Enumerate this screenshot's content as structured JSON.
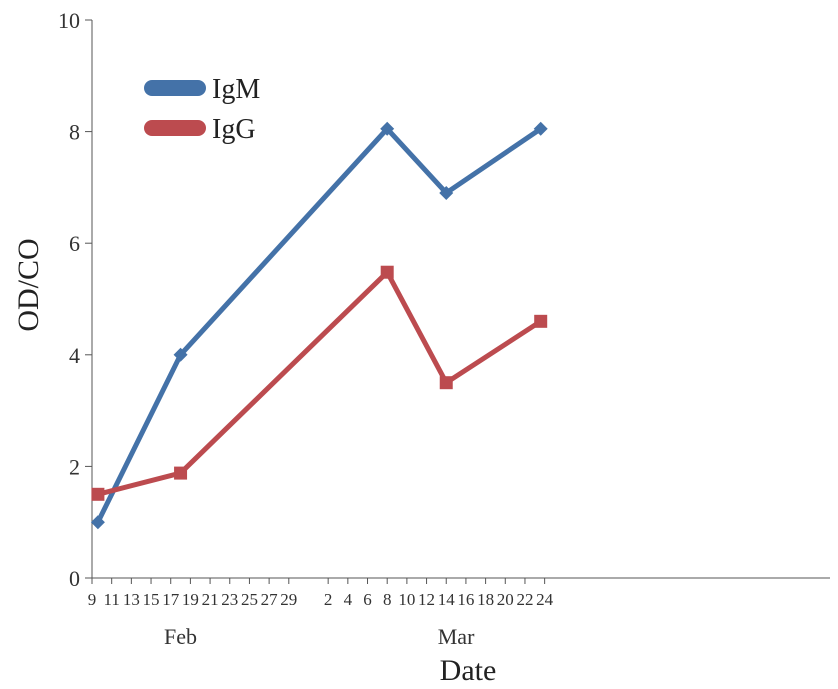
{
  "chart_data": {
    "type": "line",
    "xlabel": "Date",
    "ylabel": "OD/CO",
    "ylim": [
      0,
      10
    ],
    "y_ticks": [
      "0",
      "2",
      "4",
      "6",
      "8",
      "10"
    ],
    "x_range_days": [
      9,
      84
    ],
    "x_ticks": [
      {
        "day": 9,
        "label": "9"
      },
      {
        "day": 11,
        "label": "11"
      },
      {
        "day": 13,
        "label": "13"
      },
      {
        "day": 15,
        "label": "15"
      },
      {
        "day": 17,
        "label": "17"
      },
      {
        "day": 19,
        "label": "19"
      },
      {
        "day": 21,
        "label": "21"
      },
      {
        "day": 23,
        "label": "23"
      },
      {
        "day": 25,
        "label": "25"
      },
      {
        "day": 27,
        "label": "27"
      },
      {
        "day": 29,
        "label": "29"
      },
      {
        "day": 33,
        "label": "2"
      },
      {
        "day": 35,
        "label": "4"
      },
      {
        "day": 37,
        "label": "6"
      },
      {
        "day": 39,
        "label": "8"
      },
      {
        "day": 41,
        "label": "10"
      },
      {
        "day": 43,
        "label": "12"
      },
      {
        "day": 45,
        "label": "14"
      },
      {
        "day": 47,
        "label": "16"
      },
      {
        "day": 49,
        "label": "18"
      },
      {
        "day": 51,
        "label": "20"
      },
      {
        "day": 53,
        "label": "22"
      },
      {
        "day": 55,
        "label": "24"
      }
    ],
    "month_labels": [
      {
        "day": 18,
        "label": "Feb"
      },
      {
        "day": 46,
        "label": "Mar"
      }
    ],
    "grid": false,
    "legend": "top-left",
    "series": [
      {
        "name": "IgM",
        "color": "#4472a8",
        "marker": "diamond",
        "points": [
          {
            "day": 9.6,
            "y": 1.0
          },
          {
            "day": 18.0,
            "y": 4.0
          },
          {
            "day": 39.0,
            "y": 8.05
          },
          {
            "day": 45.0,
            "y": 6.9
          },
          {
            "day": 54.6,
            "y": 8.05
          }
        ]
      },
      {
        "name": "IgG",
        "color": "#bc4b4f",
        "marker": "square",
        "points": [
          {
            "day": 9.6,
            "y": 1.5
          },
          {
            "day": 18.0,
            "y": 1.88
          },
          {
            "day": 39.0,
            "y": 5.48
          },
          {
            "day": 45.0,
            "y": 3.5
          },
          {
            "day": 54.6,
            "y": 4.6
          }
        ]
      }
    ]
  }
}
